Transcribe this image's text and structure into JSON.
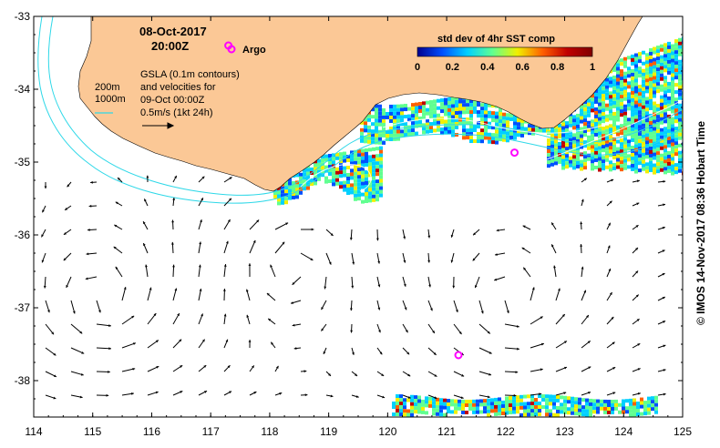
{
  "map": {
    "date_label": "08-Oct-2017",
    "time_label": "20:00Z",
    "argo_label": "Argo",
    "gsla_text": [
      "GSLA (0.1m contours)",
      "and velocities for",
      "09-Oct 00:00Z",
      "0.5m/s (1kt 24h)"
    ],
    "isobath_labels": [
      "200m",
      "1000m"
    ],
    "colorbar": {
      "title": "std dev of 4hr SST comp",
      "ticks": [
        "0",
        "0.2",
        "0.4",
        "0.6",
        "0.8",
        "1"
      ],
      "colors": [
        "#00008f",
        "#0050ff",
        "#00d0ff",
        "#60ff90",
        "#f0f000",
        "#ff6000",
        "#c00000",
        "#800000"
      ]
    },
    "credit": "© IMOS 14-Nov-2017 08:36 Hobart Time",
    "x_ticks": [
      "114",
      "115",
      "116",
      "117",
      "118",
      "119",
      "120",
      "121",
      "122",
      "123",
      "124",
      "125"
    ],
    "y_ticks": [
      "-33",
      "-34",
      "-35",
      "-36",
      "-37",
      "-38"
    ],
    "lon_range": [
      114,
      125
    ],
    "lat_range": [
      -38.5,
      -33
    ],
    "argo_floats": [
      {
        "lon": 117.3,
        "lat": -33.4
      },
      {
        "lon": 122.15,
        "lat": -34.87
      },
      {
        "lon": 121.2,
        "lat": -37.65
      }
    ],
    "colors": {
      "land": "#fbc896",
      "isobath": "#2ed8e8",
      "argo": "#ff00ff"
    }
  }
}
